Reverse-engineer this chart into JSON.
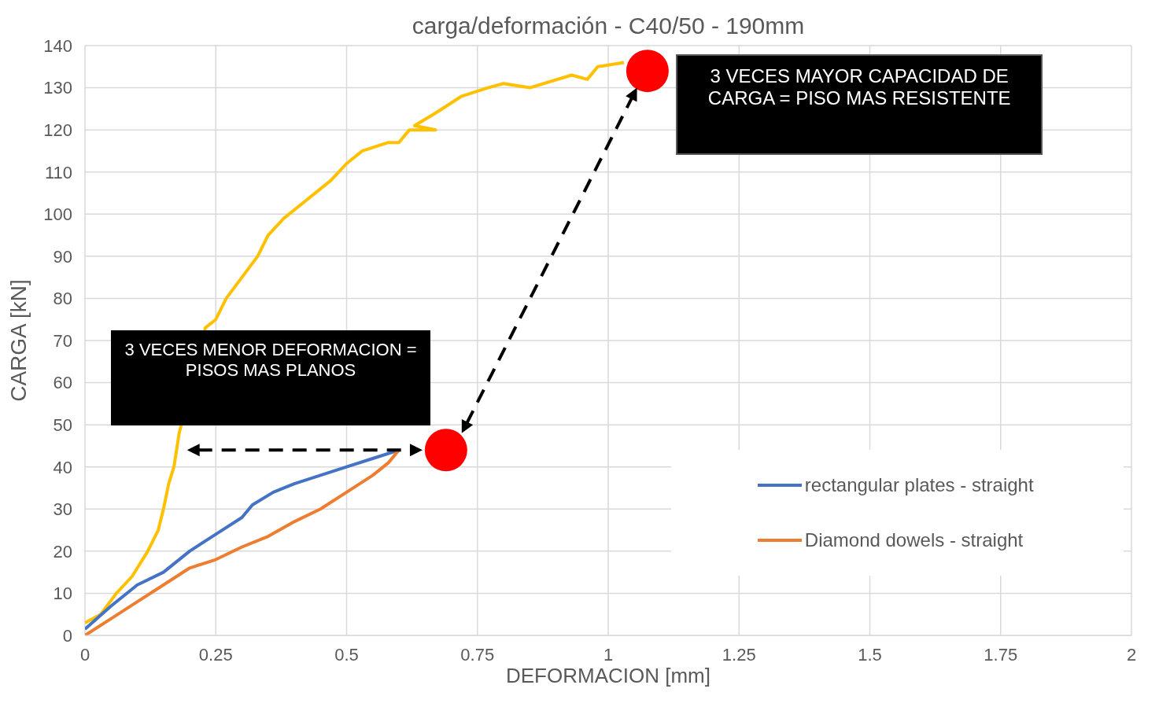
{
  "chart_data": {
    "type": "line",
    "title": "carga/deformación - C40/50 - 190mm",
    "xlabel": "DEFORMACION [mm]",
    "ylabel": "CARGA [kN]",
    "xlim": [
      0,
      2
    ],
    "xticks": [
      0,
      0.25,
      0.5,
      0.75,
      1,
      1.25,
      1.5,
      1.75,
      2
    ],
    "ylim": [
      0,
      140
    ],
    "yticks": [
      0,
      10,
      20,
      30,
      40,
      50,
      60,
      70,
      80,
      90,
      100,
      110,
      120,
      130,
      140
    ],
    "grid": true,
    "legend": "bottom right",
    "marker": "none",
    "line_style": "solid",
    "series": [
      {
        "color": "#ffc000",
        "x": [
          0,
          0.03,
          0.06,
          0.09,
          0.12,
          0.14,
          0.15,
          0.16,
          0.17,
          0.18,
          0.23,
          0.25,
          0.27,
          0.3,
          0.33,
          0.35,
          0.38,
          0.43,
          0.47,
          0.5,
          0.53,
          0.58,
          0.6,
          0.62,
          0.67,
          0.63,
          0.67,
          0.72,
          0.77,
          0.8,
          0.85,
          0.93,
          0.96,
          0.98,
          1.03
        ],
        "values": [
          3,
          5,
          10,
          14,
          20,
          25,
          30,
          36,
          40,
          48,
          73,
          75,
          80,
          85,
          90,
          95,
          99,
          104,
          108,
          112,
          115,
          117,
          117,
          120,
          120,
          121,
          124,
          128,
          130,
          131,
          130,
          133,
          132,
          135,
          136
        ]
      },
      {
        "name": "rectangular plates - straight",
        "color": "#4472c4",
        "x": [
          0,
          0.05,
          0.1,
          0.15,
          0.2,
          0.25,
          0.3,
          0.32,
          0.36,
          0.4,
          0.45,
          0.5,
          0.55,
          0.6
        ],
        "values": [
          1.5,
          7,
          12,
          15,
          20,
          24,
          28,
          31,
          34,
          36,
          38,
          40,
          42,
          44
        ]
      },
      {
        "name": "Diamond dowels - straight",
        "color": "#ed7d31",
        "x": [
          0,
          0.05,
          0.1,
          0.15,
          0.2,
          0.25,
          0.3,
          0.35,
          0.4,
          0.45,
          0.5,
          0.55,
          0.58,
          0.6
        ],
        "values": [
          0,
          4,
          8,
          12,
          16,
          18,
          21,
          23.5,
          27,
          30,
          34,
          38,
          41,
          44
        ]
      },
      {
        "type": "scatter",
        "marker": "circle",
        "color": "#ff0000",
        "x": [
          0.69,
          1.075
        ],
        "values": [
          44,
          134
        ]
      }
    ],
    "annotations": [
      "3 VECES MAYOR CAPACIDAD DE CARGA = PISO MAS RESISTENTE",
      "3 VECES MENOR DEFORMACION = PISOS MAS PLANOS"
    ]
  }
}
